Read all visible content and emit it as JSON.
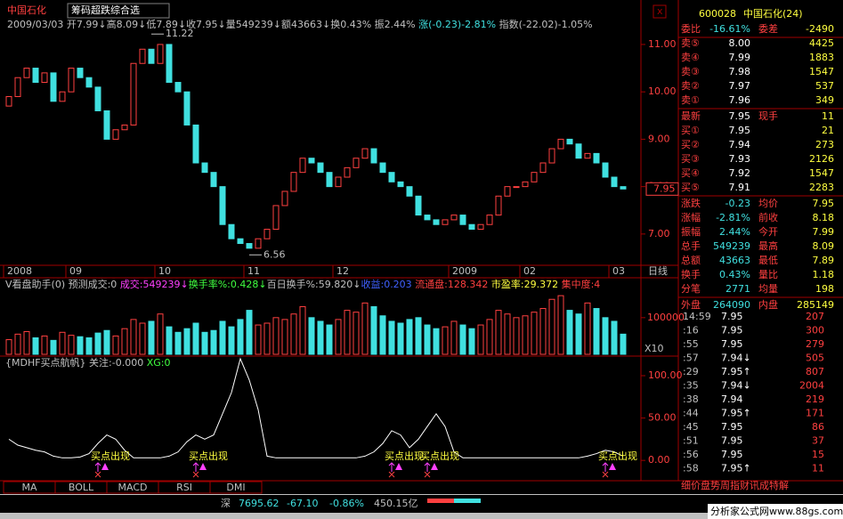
{
  "header": {
    "stock": "中国石化",
    "tool": "筹码超跌综合选"
  },
  "quote_line": [
    {
      "text": "2009/03/03",
      "color": "#c0c0c0"
    },
    {
      "text": " 开7.99↓",
      "color": "#c0c0c0"
    },
    {
      "text": "高8.09↓",
      "color": "#c0c0c0"
    },
    {
      "text": "低7.89↓",
      "color": "#c0c0c0"
    },
    {
      "text": "收7.95↓",
      "color": "#c0c0c0"
    },
    {
      "text": "量549239↓",
      "color": "#c0c0c0"
    },
    {
      "text": "额43663↓",
      "color": "#c0c0c0"
    },
    {
      "text": "换0.43% ",
      "color": "#c0c0c0"
    },
    {
      "text": "振2.44% ",
      "color": "#c0c0c0"
    },
    {
      "text": "涨(-0.23)-2.81% ",
      "color": "#40e0e0"
    },
    {
      "text": "指数(-22.02)-1.05%",
      "color": "#c0c0c0"
    }
  ],
  "kline": {
    "ylim": [
      6.34,
      11.6
    ],
    "yticks": [
      {
        "value": 11,
        "label": "11.00"
      },
      {
        "value": 10,
        "label": "10.00"
      },
      {
        "value": 9,
        "label": "9.00"
      },
      {
        "value": 8,
        "label": "8.00"
      },
      {
        "value": 7,
        "label": "7.00"
      }
    ],
    "open0": 9.7,
    "closes": [
      9.9,
      10.3,
      10.5,
      10.2,
      10.4,
      9.8,
      10.0,
      10.5,
      10.3,
      10.1,
      9.6,
      9.0,
      9.2,
      9.3,
      10.6,
      10.9,
      10.6,
      11.0,
      10.2,
      10.0,
      9.3,
      8.5,
      8.3,
      8.0,
      7.2,
      6.9,
      6.8,
      6.7,
      6.9,
      7.1,
      7.6,
      7.9,
      8.3,
      8.6,
      8.5,
      8.3,
      8.0,
      8.2,
      8.4,
      8.6,
      8.8,
      8.5,
      8.3,
      8.1,
      8.0,
      7.8,
      7.4,
      7.3,
      7.2,
      7.3,
      7.4,
      7.2,
      7.1,
      7.2,
      7.4,
      7.8,
      8.0,
      8.0,
      8.1,
      8.3,
      8.5,
      8.8,
      9.0,
      8.9,
      8.6,
      8.7,
      8.5,
      8.2,
      8.0,
      7.95
    ],
    "dates": [
      {
        "index": 0,
        "label": "2008"
      },
      {
        "index": 7,
        "label": "09"
      },
      {
        "index": 17,
        "label": "10"
      },
      {
        "index": 27,
        "label": "11"
      },
      {
        "index": 37,
        "label": "12"
      },
      {
        "index": 50,
        "label": "2009"
      },
      {
        "index": 58,
        "label": "02"
      },
      {
        "index": 68,
        "label": "03"
      }
    ],
    "period": "日线",
    "high_mark": {
      "index": 16,
      "value": 11.22,
      "label": "11.22"
    },
    "low_mark": {
      "index": 27,
      "value": 6.56,
      "label": "6.56"
    },
    "last": {
      "value": 7.95,
      "label": "7.95"
    }
  },
  "volume": {
    "header": [
      {
        "text": "V看盘助手(0) 预测成交:0 ",
        "color": "#c0c0c0"
      },
      {
        "text": "成交:549239↓",
        "color": "#ff40ff"
      },
      {
        "text": "换手率%:0.428↓",
        "color": "#40ff40"
      },
      {
        "text": "百日换手%:59.820↓",
        "color": "#c0c0c0"
      },
      {
        "text": "收益:0.203 ",
        "color": "#4060ff"
      },
      {
        "text": "流通盘:128.342 ",
        "color": "#ff4040"
      },
      {
        "text": "市盈率:29.372 ",
        "color": "#ffff40"
      },
      {
        "text": "集中度:4",
        "color": "#ff4040"
      }
    ],
    "ylim": [
      0,
      170000
    ],
    "yticks": [
      100000
    ],
    "unit": "X10",
    "values": [
      40000,
      55000,
      62000,
      45000,
      50000,
      38000,
      60000,
      52000,
      48000,
      45000,
      58000,
      65000,
      50000,
      70000,
      95000,
      85000,
      90000,
      110000,
      75000,
      60000,
      70000,
      85000,
      60000,
      65000,
      90000,
      75000,
      95000,
      120000,
      80000,
      85000,
      100000,
      95000,
      110000,
      130000,
      100000,
      90000,
      80000,
      95000,
      120000,
      115000,
      140000,
      130000,
      105000,
      90000,
      85000,
      95000,
      100000,
      80000,
      70000,
      75000,
      90000,
      80000,
      70000,
      80000,
      95000,
      120000,
      110000,
      100000,
      105000,
      115000,
      125000,
      150000,
      160000,
      120000,
      110000,
      140000,
      125000,
      100000,
      90000,
      55000
    ]
  },
  "indicator": {
    "title": "{MDHF买点航帆} 关注:-0.000 ",
    "xg": "XG:0",
    "ylim": [
      -24,
      112.6
    ],
    "yticks": [
      {
        "value": 100,
        "label": "100.00"
      },
      {
        "value": 50,
        "label": "50.00"
      },
      {
        "value": 0,
        "label": "0.00"
      }
    ],
    "values": [
      25,
      18,
      15,
      12,
      10,
      5,
      3,
      3,
      4,
      8,
      20,
      30,
      25,
      12,
      3,
      3,
      3,
      3,
      5,
      10,
      22,
      30,
      25,
      30,
      55,
      80,
      120,
      95,
      60,
      5,
      3,
      3,
      3,
      3,
      3,
      3,
      3,
      3,
      3,
      3,
      5,
      10,
      20,
      35,
      30,
      15,
      25,
      40,
      55,
      40,
      10,
      3,
      3,
      3,
      3,
      3,
      3,
      3,
      3,
      3,
      3,
      3,
      3,
      3,
      3,
      5,
      8,
      12,
      10,
      5
    ],
    "signals": [
      {
        "index": 10,
        "label": "买点出现"
      },
      {
        "index": 21,
        "label": "买点出现"
      },
      {
        "index": 43,
        "label": "买点出现"
      },
      {
        "index": 47,
        "label": "买点出现"
      },
      {
        "index": 67,
        "label": "买点出现"
      }
    ]
  },
  "tabs": [
    "MA",
    "BOLL",
    "MACD",
    "RSI",
    "DMI"
  ],
  "status": {
    "market": "深",
    "index": "7695.62",
    "change": "-67.10",
    "pct": "-0.86%",
    "amount": "450.15亿",
    "site": "分析家公式网www.88gs.com"
  },
  "panel": {
    "code": "600028",
    "name": "中国石化(24)",
    "rows": [
      [
        "委比",
        "-16.61%",
        "委差",
        "-2490"
      ],
      [
        "卖⑤",
        "8.00",
        "",
        "4425"
      ],
      [
        "卖④",
        "7.99",
        "",
        "1883"
      ],
      [
        "卖③",
        "7.98",
        "",
        "1547"
      ],
      [
        "卖②",
        "7.97",
        "",
        "537"
      ],
      [
        "卖①",
        "7.96",
        "",
        "349"
      ],
      [
        "最新",
        "7.95",
        "现手",
        "11"
      ],
      [
        "买①",
        "7.95",
        "",
        "21"
      ],
      [
        "买②",
        "7.94",
        "",
        "273"
      ],
      [
        "买③",
        "7.93",
        "",
        "2126"
      ],
      [
        "买④",
        "7.92",
        "",
        "1547"
      ],
      [
        "买⑤",
        "7.91",
        "",
        "2283"
      ],
      [
        "涨跌",
        "-0.23",
        "均价",
        "7.95"
      ],
      [
        "涨幅",
        "-2.81%",
        "前收",
        "8.18"
      ],
      [
        "振幅",
        "2.44%",
        "今开",
        "7.99"
      ],
      [
        "总手",
        "549239",
        "最高",
        "8.09"
      ],
      [
        "总额",
        "43663",
        "最低",
        "7.89"
      ],
      [
        "换手",
        "0.43%",
        "量比",
        "1.18"
      ],
      [
        "分笔",
        "2771",
        "均量",
        "198"
      ],
      [
        "外盘",
        "264090",
        "内盘",
        "285149"
      ]
    ],
    "ticks": [
      [
        "14:59",
        "7.95",
        "207"
      ],
      [
        ":16",
        "7.95",
        "300"
      ],
      [
        ":55",
        "7.95",
        "279"
      ],
      [
        ":57",
        "7.94↓",
        "505"
      ],
      [
        ":29",
        "7.95↑",
        "807"
      ],
      [
        ":35",
        "7.94↓",
        "2004"
      ],
      [
        ":38",
        "7.94",
        "219"
      ],
      [
        ":44",
        "7.95↑",
        "171"
      ],
      [
        ":45",
        "7.95",
        "86"
      ],
      [
        ":51",
        "7.95",
        "37"
      ],
      [
        ":56",
        "7.95",
        "15"
      ],
      [
        ":58",
        "7.95↑",
        "11"
      ]
    ],
    "menu": "细价盘势周指财讯成特解"
  }
}
